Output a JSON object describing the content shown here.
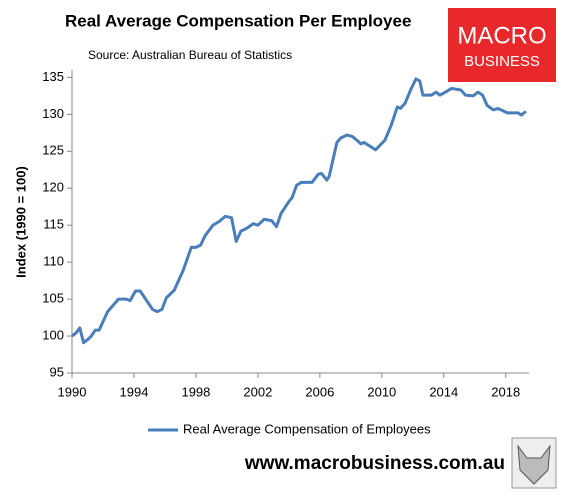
{
  "chart_data": {
    "type": "line",
    "title": "Real Average Compensation Per Employee",
    "subtitle": "Source: Australian Bureau of Statistics",
    "y_label": "Index (1990 = 100)",
    "x": [
      1990.0,
      1990.25,
      1990.5,
      1990.75,
      1991.0,
      1991.25,
      1991.5,
      1991.75,
      1992.3,
      1993.0,
      1993.5,
      1993.75,
      1994.1,
      1994.4,
      1995.2,
      1995.5,
      1995.8,
      1996.1,
      1996.6,
      1997.2,
      1997.7,
      1998.0,
      1998.3,
      1998.6,
      1999.1,
      1999.5,
      1999.9,
      2000.3,
      2000.6,
      2000.9,
      2001.3,
      2001.7,
      2002.0,
      2002.4,
      2002.9,
      2003.2,
      2003.5,
      2004.0,
      2004.2,
      2004.5,
      2004.8,
      2005.5,
      2005.9,
      2006.1,
      2006.45,
      2006.6,
      2007.1,
      2007.35,
      2007.75,
      2008.1,
      2008.5,
      2008.65,
      2008.85,
      2009.3,
      2009.6,
      2010.2,
      2010.6,
      2011.0,
      2011.2,
      2011.5,
      2011.9,
      2012.2,
      2012.45,
      2012.65,
      2013.2,
      2013.5,
      2013.75,
      2014.1,
      2014.5,
      2015.1,
      2015.4,
      2015.9,
      2016.2,
      2016.5,
      2016.8,
      2017.2,
      2017.5,
      2017.8,
      2018.1,
      2018.8,
      2019.0,
      2019.3
    ],
    "series": [
      {
        "name": "Real Average Compensation of Employees",
        "color": "#4a7ebb",
        "values": [
          100.0,
          100.4,
          101.1,
          99.1,
          99.5,
          100.0,
          100.8,
          100.8,
          103.3,
          105.0,
          105.0,
          104.8,
          106.1,
          106.1,
          103.6,
          103.3,
          103.6,
          105.2,
          106.2,
          109.0,
          112.0,
          112.0,
          112.3,
          113.6,
          115.0,
          115.5,
          116.2,
          116.0,
          112.8,
          114.2,
          114.6,
          115.2,
          115.0,
          115.8,
          115.6,
          114.8,
          116.6,
          118.2,
          118.7,
          120.4,
          120.8,
          120.8,
          121.9,
          122.0,
          121.1,
          121.6,
          126.2,
          126.8,
          127.2,
          127.0,
          126.3,
          126.0,
          126.2,
          125.6,
          125.2,
          126.5,
          128.5,
          131.0,
          130.8,
          131.5,
          133.5,
          134.8,
          134.5,
          132.6,
          132.6,
          133.0,
          132.6,
          133.0,
          133.5,
          133.3,
          132.6,
          132.5,
          133.0,
          132.6,
          131.2,
          130.6,
          130.8,
          130.5,
          130.2,
          130.2,
          129.9,
          130.4
        ]
      }
    ],
    "xlim": [
      1990,
      2019.5
    ],
    "xticks": [
      1990,
      1994,
      1998,
      2002,
      2006,
      2010,
      2014,
      2018
    ],
    "ylim": [
      95,
      136
    ],
    "yticks": [
      95,
      100,
      105,
      110,
      115,
      120,
      125,
      130,
      135
    ],
    "grid": false
  },
  "logo": {
    "line1": "MACRO",
    "line2": "BUSINESS"
  },
  "footer": "www.macrobusiness.com.au"
}
